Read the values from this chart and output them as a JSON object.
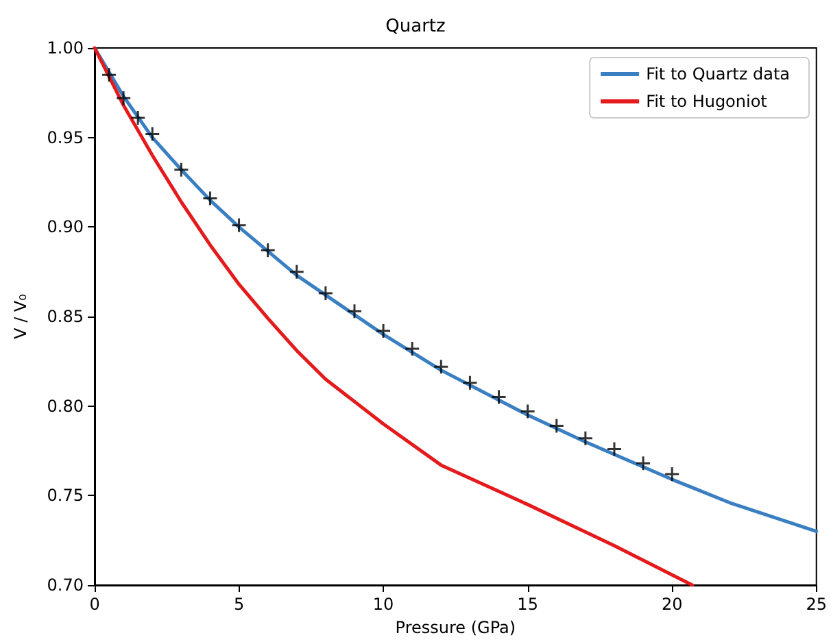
{
  "chart_data": {
    "type": "line",
    "title": "Quartz",
    "xlabel": "Pressure (GPa)",
    "ylabel": "V / V₀",
    "xlim": [
      0,
      25
    ],
    "xticks": [
      0,
      5,
      10,
      15,
      20,
      25
    ],
    "ylim": [
      0.7,
      1.0
    ],
    "yticks": [
      {
        "value": 0.7,
        "label": "0.70"
      },
      {
        "value": 0.75,
        "label": "0.75"
      },
      {
        "value": 0.8,
        "label": "0.80"
      },
      {
        "value": 0.85,
        "label": "0.85"
      },
      {
        "value": 0.9,
        "label": "0.90"
      },
      {
        "value": 0.95,
        "label": "0.95"
      },
      {
        "value": 1.0,
        "label": "1.00"
      }
    ],
    "grid": false,
    "legend": "top right",
    "line_style": "solid",
    "series": [
      {
        "name": "Fit to Quartz data",
        "marker": "none",
        "color": "#3a7fc1",
        "x": [
          0,
          1,
          2,
          3,
          4,
          5,
          7,
          10,
          12,
          15,
          17,
          20,
          22,
          25
        ],
        "values": [
          1.0,
          0.973,
          0.95,
          0.932,
          0.915,
          0.9,
          0.873,
          0.84,
          0.82,
          0.795,
          0.78,
          0.759,
          0.746,
          0.73
        ]
      },
      {
        "name": "Fit to Hugoniot",
        "marker": "none",
        "color": "#e41a1c",
        "x": [
          0,
          1,
          2,
          3,
          4,
          5,
          6,
          7,
          8,
          10,
          12,
          15,
          18,
          20.7
        ],
        "values": [
          1.0,
          0.968,
          0.94,
          0.914,
          0.89,
          0.868,
          0.849,
          0.831,
          0.815,
          0.79,
          0.767,
          0.745,
          0.722,
          0.7
        ]
      },
      {
        "type": "scatter",
        "marker": "cross",
        "color": "#000000",
        "x": [
          0.5,
          1,
          1.5,
          2,
          3,
          4,
          5,
          6,
          7,
          8,
          9,
          10,
          11,
          12,
          13,
          14,
          15,
          16,
          17,
          18,
          19,
          20
        ],
        "values": [
          0.985,
          0.972,
          0.961,
          0.952,
          0.932,
          0.916,
          0.901,
          0.887,
          0.875,
          0.863,
          0.853,
          0.842,
          0.832,
          0.822,
          0.813,
          0.805,
          0.797,
          0.789,
          0.782,
          0.776,
          0.768,
          0.762
        ]
      }
    ]
  }
}
